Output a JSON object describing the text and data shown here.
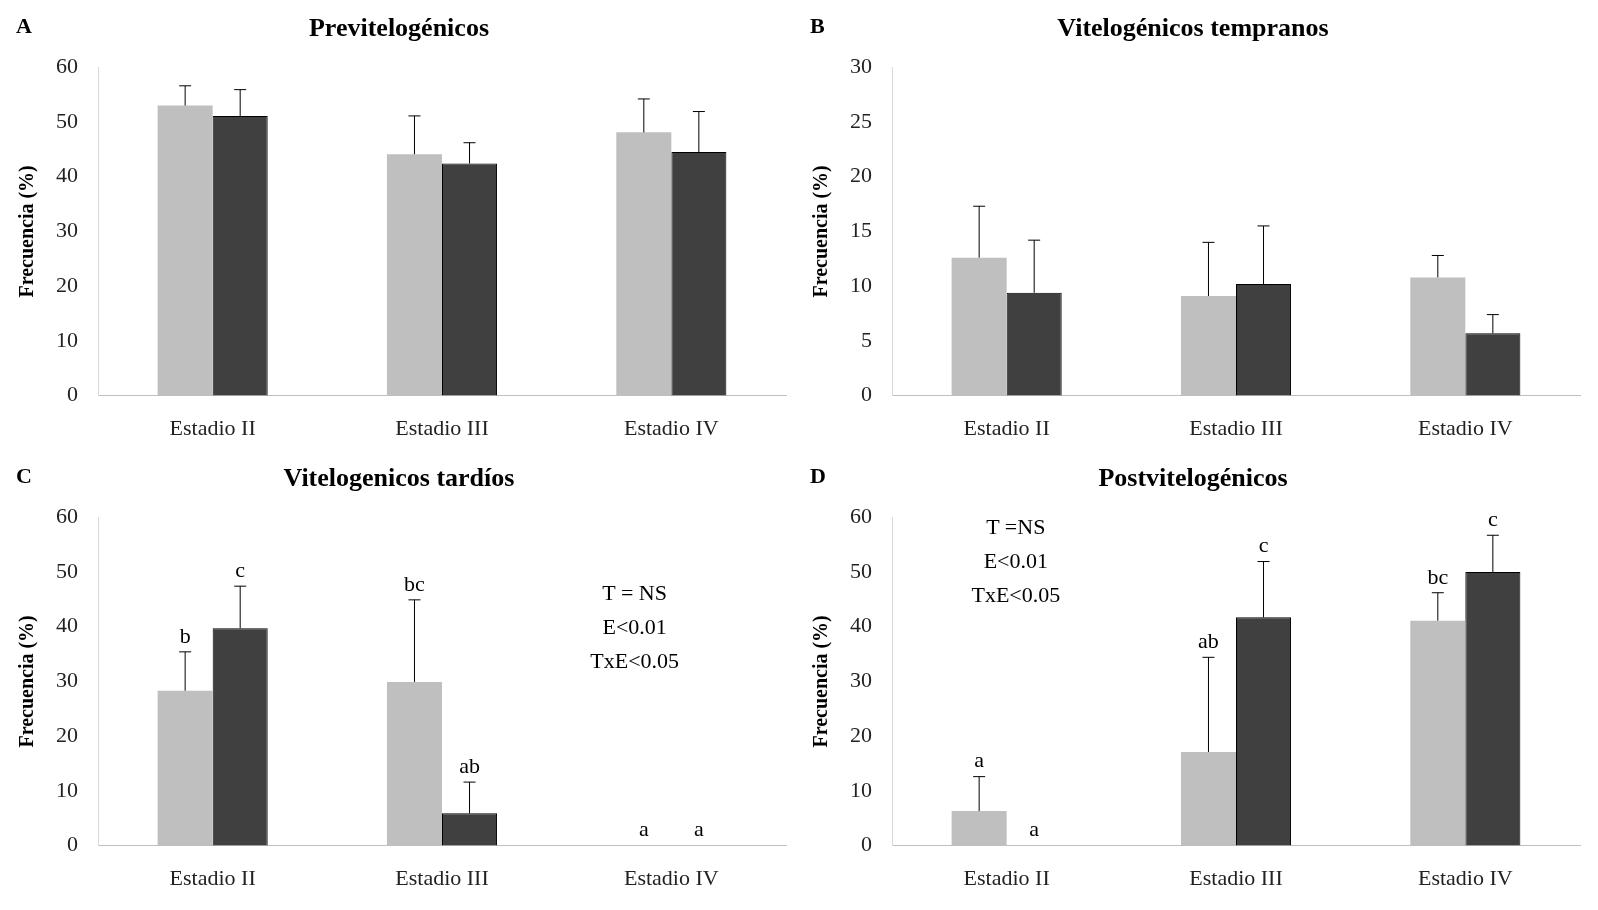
{
  "chart_data": [
    {
      "type": "bar",
      "title": "Previtelogénicos",
      "ylabel": "Frecuencia (%)",
      "categories": [
        "Estadio II",
        "Estadio III",
        "Estadio IV"
      ],
      "ylim": [
        0,
        60
      ],
      "yticks": [
        0,
        10,
        20,
        30,
        40,
        50,
        60
      ],
      "grid": false,
      "legend": false,
      "annotations": [
        "A"
      ],
      "series": [
        {
          "color": "#bfbfbf",
          "values": [
            53.0,
            44.1,
            48.1
          ],
          "errors": [
            3.6,
            7.0,
            6.1
          ]
        },
        {
          "color": "#404040",
          "values": [
            51.1,
            42.4,
            44.5
          ],
          "errors": [
            4.8,
            3.8,
            7.4
          ]
        }
      ]
    },
    {
      "type": "bar",
      "title": "Vitelogénicos tempranos",
      "ylabel": "Frecuencia (%)",
      "categories": [
        "Estadio II",
        "Estadio III",
        "Estadio IV"
      ],
      "ylim": [
        0,
        30
      ],
      "yticks": [
        0,
        5,
        10,
        15,
        20,
        25,
        30
      ],
      "grid": false,
      "legend": false,
      "annotations": [
        "B"
      ],
      "series": [
        {
          "color": "#bfbfbf",
          "values": [
            12.6,
            9.1,
            10.8
          ],
          "errors": [
            4.7,
            4.9,
            2.0
          ]
        },
        {
          "color": "#404040",
          "values": [
            9.4,
            10.2,
            5.7
          ],
          "errors": [
            4.8,
            5.3,
            1.7
          ]
        }
      ]
    },
    {
      "type": "bar",
      "title": "Vitelogenicos tardíos",
      "ylabel": "Frecuencia (%)",
      "categories": [
        "Estadio II",
        "Estadio III",
        "Estadio IV"
      ],
      "ylim": [
        0,
        60
      ],
      "yticks": [
        0,
        10,
        20,
        30,
        40,
        50,
        60
      ],
      "grid": false,
      "legend": false,
      "annotations": [
        "C",
        "T = NS",
        "E<0.01",
        "TxE<0.05",
        "c",
        "bc",
        {
          "text": "b",
          "x": "Estadio II",
          "y": 35.4
        },
        {
          "text": "ab",
          "x": "Estadio III",
          "y": 11.6
        },
        {
          "text": "a",
          "x": "Estadio IV",
          "y": 0
        },
        {
          "text": "a",
          "x": "Estadio IV",
          "y": 0
        }
      ],
      "series": [
        {
          "color": "#bfbfbf",
          "values": [
            28.3,
            29.9,
            0
          ],
          "errors": [
            7.1,
            15.0,
            null
          ]
        },
        {
          "color": "#404040",
          "values": [
            39.7,
            5.9,
            0
          ],
          "errors": [
            7.7,
            5.7,
            null
          ]
        }
      ]
    },
    {
      "type": "bar",
      "title": "Postvitelogénicos",
      "ylabel": "Frecuencia (%)",
      "categories": [
        "Estadio II",
        "Estadio III",
        "Estadio IV"
      ],
      "ylim": [
        0,
        60
      ],
      "yticks": [
        0,
        10,
        20,
        30,
        40,
        50,
        60
      ],
      "grid": false,
      "legend": false,
      "annotations": [
        "D",
        "T =NS",
        "E<0.01",
        "TxE<0.05",
        "a",
        "c",
        "c",
        {
          "text": "a",
          "x": "Estadio II",
          "y": 0
        },
        {
          "text": "ab",
          "x": "Estadio III",
          "y": 34.4
        },
        {
          "text": "bc",
          "x": "Estadio IV",
          "y": 46.2
        }
      ],
      "series": [
        {
          "color": "#bfbfbf",
          "values": [
            6.3,
            17.1,
            41.1
          ],
          "errors": [
            6.3,
            17.3,
            5.1
          ]
        },
        {
          "color": "#404040",
          "values": [
            0,
            41.7,
            50.0
          ],
          "errors": [
            null,
            10.2,
            6.7
          ]
        }
      ]
    }
  ]
}
